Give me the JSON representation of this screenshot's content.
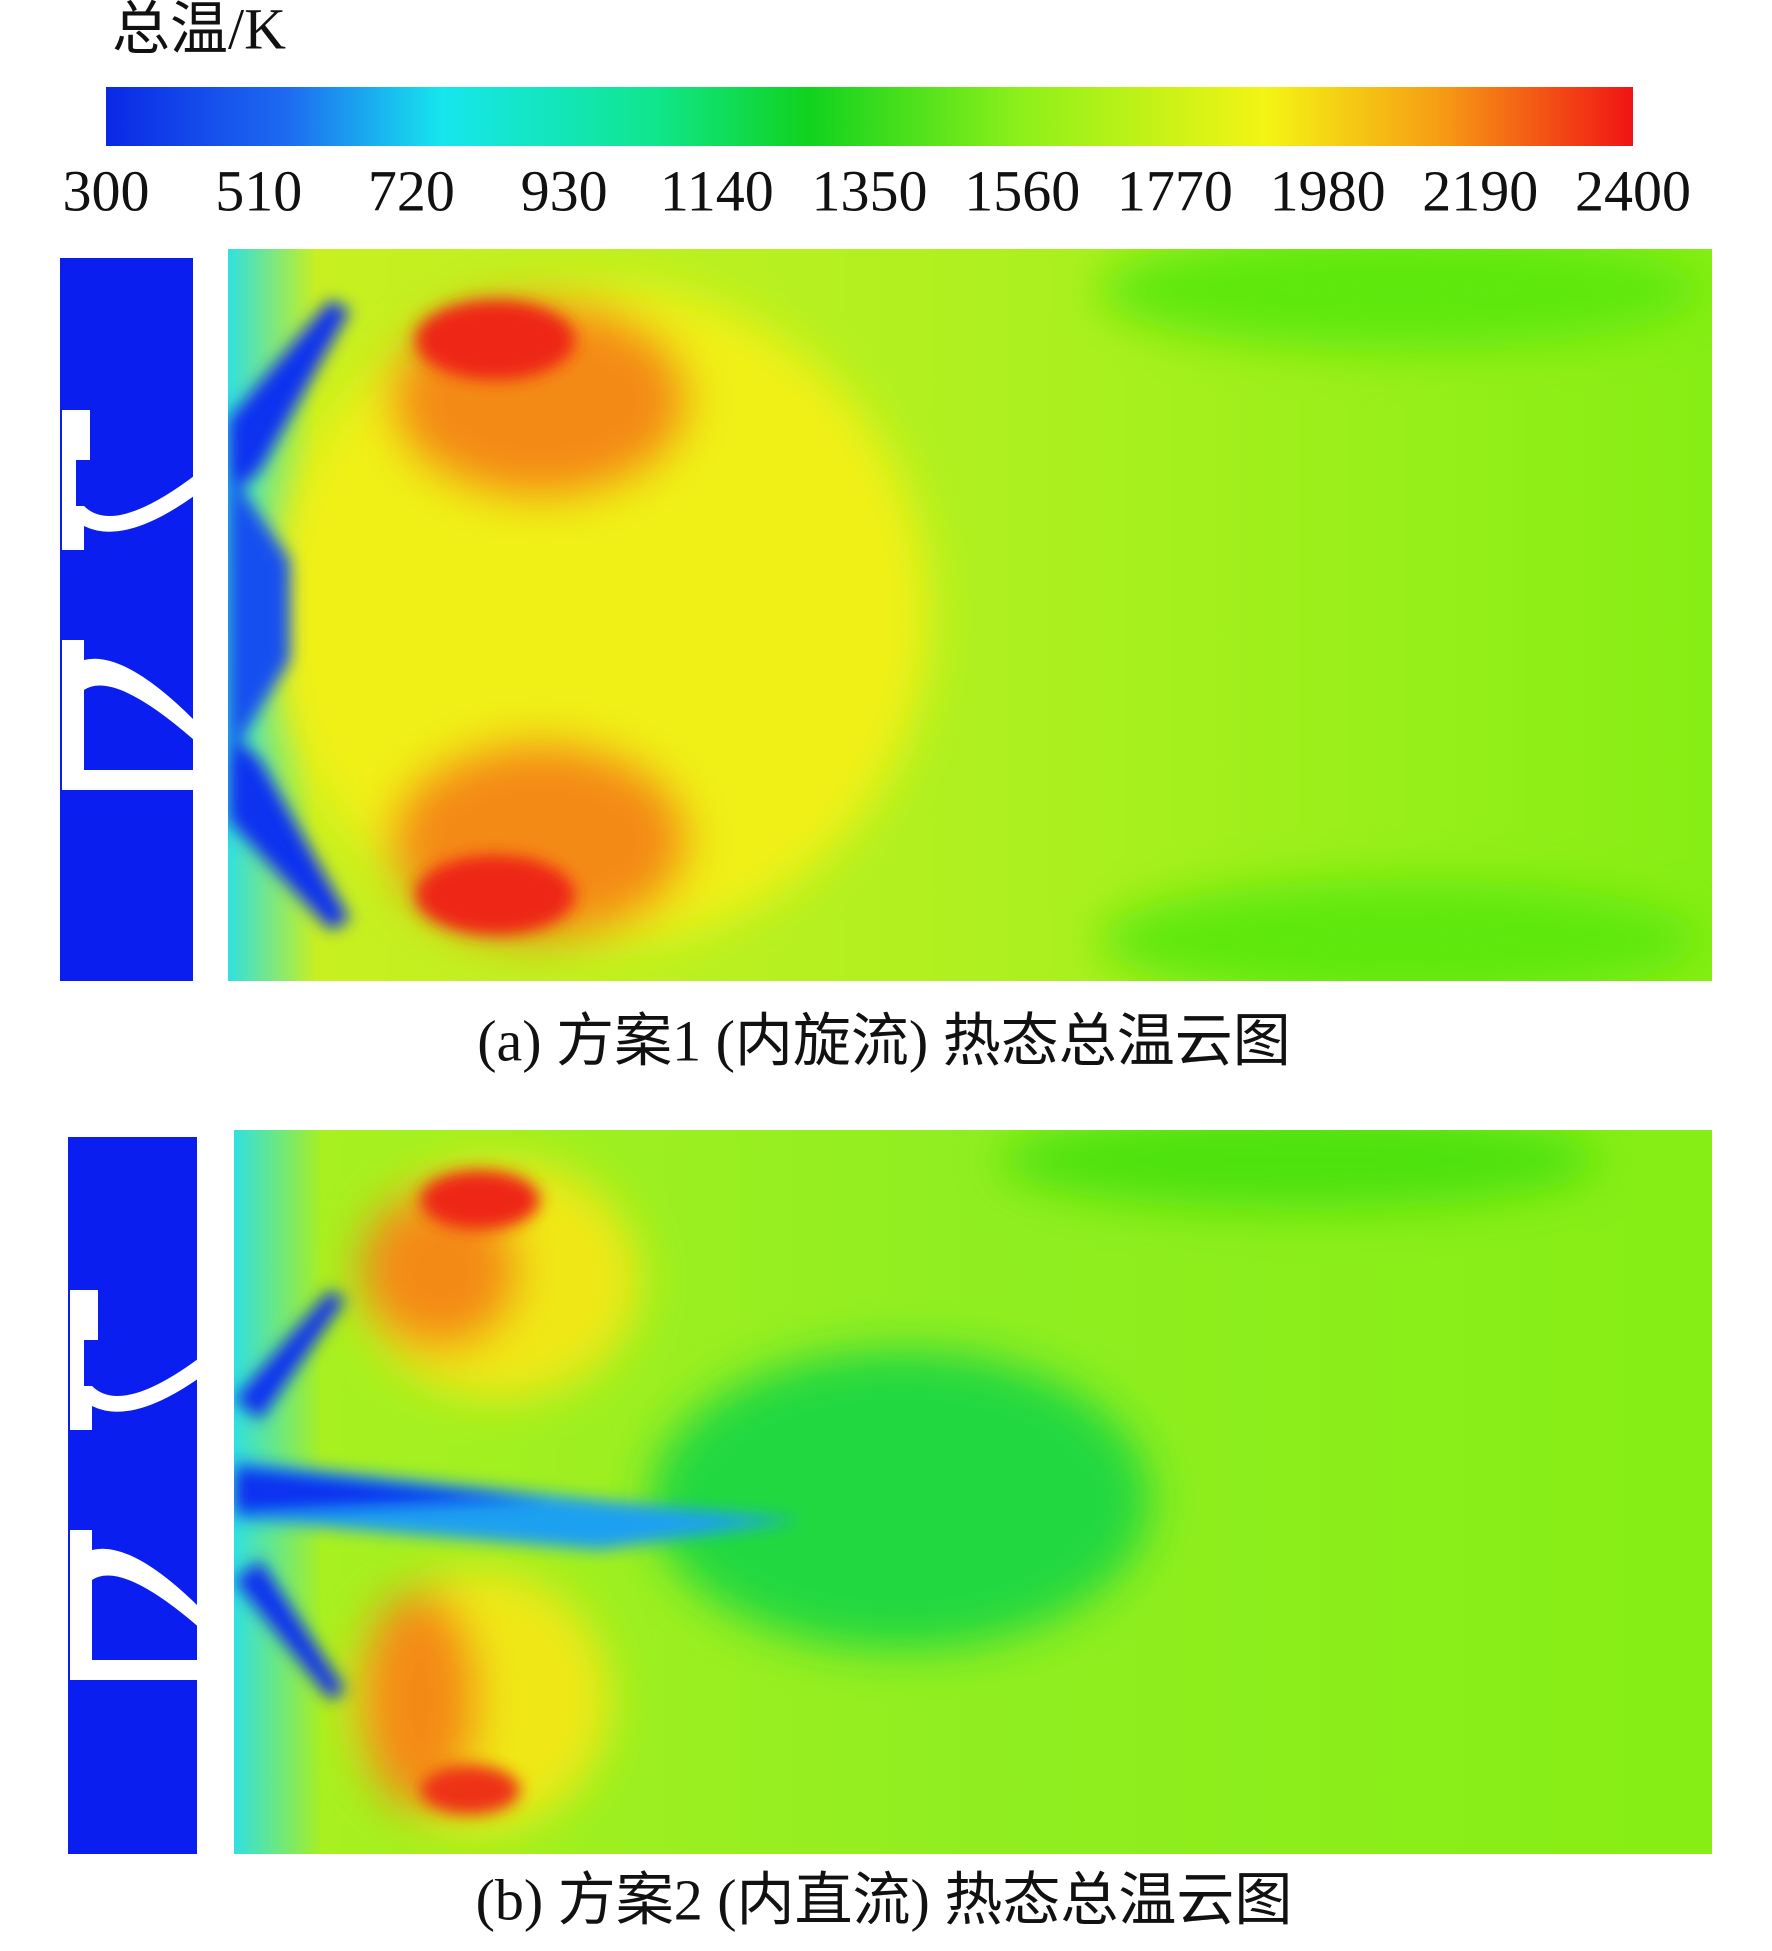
{
  "colorbar": {
    "title": "总温/K",
    "lim": [
      300,
      2400
    ],
    "ticks": [
      300,
      510,
      720,
      930,
      1140,
      1350,
      1560,
      1770,
      1980,
      2190,
      2400
    ]
  },
  "panels": [
    {
      "caption": "(a) 方案1 (内旋流) 热态总温云图"
    },
    {
      "caption": "(b) 方案2 (内直流) 热态总温云图"
    }
  ]
}
